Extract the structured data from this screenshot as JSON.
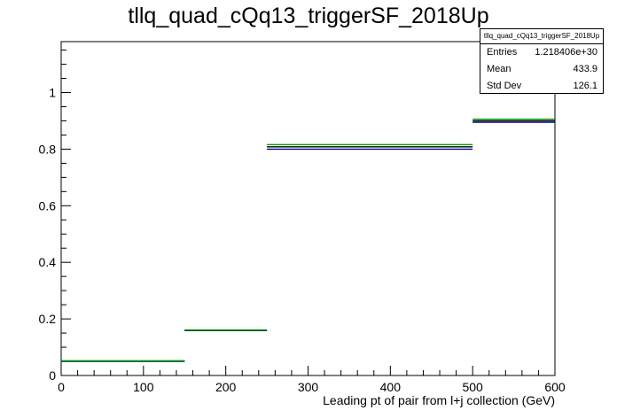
{
  "chart_data": {
    "type": "histogram",
    "title": "tllq_quad_cQq13_triggerSF_2018Up",
    "xlabel": "Leading pt of pair from l+j collection (GeV)",
    "ylabel": "",
    "xlim": [
      0,
      600
    ],
    "ylim": [
      0,
      1.18
    ],
    "x_ticks": [
      "0",
      "100",
      "200",
      "300",
      "400",
      "500",
      "600"
    ],
    "y_ticks": [
      "0",
      "0.2",
      "0.4",
      "0.6",
      "0.8",
      "1"
    ],
    "grid": false,
    "series": [
      {
        "color": "#00008b",
        "bins": [
          {
            "x0": 0,
            "x1": 150,
            "y": 0.05
          },
          {
            "x0": 150,
            "x1": 250,
            "y": 0.159
          },
          {
            "x0": 250,
            "x1": 500,
            "y": 0.8
          },
          {
            "x0": 500,
            "x1": 600,
            "y": 0.895
          }
        ]
      },
      {
        "color": "#000000",
        "bins": [
          {
            "x0": 0,
            "x1": 150,
            "y": 0.051
          },
          {
            "x0": 150,
            "x1": 250,
            "y": 0.16
          },
          {
            "x0": 250,
            "x1": 500,
            "y": 0.808
          },
          {
            "x0": 500,
            "x1": 600,
            "y": 0.9
          }
        ]
      },
      {
        "color": "#00a000",
        "bins": [
          {
            "x0": 0,
            "x1": 150,
            "y": 0.052
          },
          {
            "x0": 150,
            "x1": 250,
            "y": 0.161
          },
          {
            "x0": 250,
            "x1": 500,
            "y": 0.816
          },
          {
            "x0": 500,
            "x1": 600,
            "y": 0.906
          }
        ]
      }
    ]
  },
  "stats_box": {
    "name": "tllq_quad_cQq13_triggerSF_2018Up",
    "entries_label": "Entries",
    "entries_value": "1.218406e+30",
    "mean_label": "Mean",
    "mean_value": "433.9",
    "stddev_label": "Std Dev",
    "stddev_value": "126.1"
  }
}
